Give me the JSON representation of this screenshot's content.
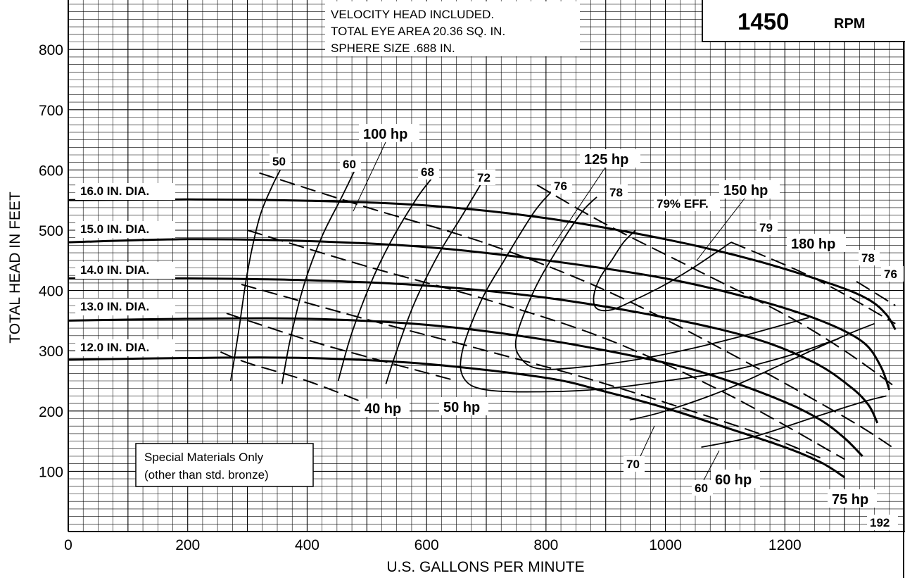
{
  "chart_data": {
    "type": "line",
    "title": "",
    "xlabel": "U.S. GALLONS PER MINUTE",
    "ylabel": "TOTAL HEAD IN FEET",
    "xlim": [
      0,
      1400
    ],
    "ylim": [
      0,
      900
    ],
    "xticks": [
      0,
      200,
      400,
      600,
      800,
      1000,
      1200
    ],
    "yticks": [
      100,
      200,
      300,
      400,
      500,
      600,
      700,
      800
    ],
    "grid": true,
    "speed": {
      "value": "1450",
      "unit": "RPM"
    },
    "notes": [
      "VELOCITY HEAD INCLUDED.",
      "TOTAL EYE AREA 20.36 SQ. IN.",
      "SPHERE SIZE .688 IN."
    ],
    "materials_note": [
      "Special Materials Only",
      "(other than std. bronze)"
    ],
    "head_curves": [
      {
        "label": "16.0 IN. DIA.",
        "points": [
          [
            0,
            550
          ],
          [
            200,
            551
          ],
          [
            400,
            549
          ],
          [
            600,
            541
          ],
          [
            800,
            520
          ],
          [
            1000,
            485
          ],
          [
            1150,
            450
          ],
          [
            1280,
            410
          ],
          [
            1340,
            385
          ],
          [
            1370,
            360
          ],
          [
            1385,
            335
          ]
        ]
      },
      {
        "label": "15.0 IN. DIA.",
        "points": [
          [
            0,
            480
          ],
          [
            200,
            485
          ],
          [
            400,
            482
          ],
          [
            600,
            472
          ],
          [
            800,
            450
          ],
          [
            1000,
            420
          ],
          [
            1150,
            385
          ],
          [
            1260,
            350
          ],
          [
            1330,
            315
          ],
          [
            1360,
            275
          ],
          [
            1375,
            235
          ]
        ]
      },
      {
        "label": "14.0 IN. DIA.",
        "points": [
          [
            0,
            420
          ],
          [
            200,
            420
          ],
          [
            400,
            417
          ],
          [
            600,
            408
          ],
          [
            800,
            388
          ],
          [
            1000,
            355
          ],
          [
            1150,
            320
          ],
          [
            1250,
            280
          ],
          [
            1310,
            240
          ],
          [
            1340,
            210
          ],
          [
            1355,
            180
          ]
        ]
      },
      {
        "label": "13.0 IN. DIA.",
        "points": [
          [
            0,
            350
          ],
          [
            200,
            353
          ],
          [
            400,
            353
          ],
          [
            600,
            343
          ],
          [
            800,
            318
          ],
          [
            1000,
            280
          ],
          [
            1100,
            252
          ],
          [
            1200,
            215
          ],
          [
            1260,
            185
          ],
          [
            1300,
            155
          ],
          [
            1330,
            125
          ]
        ]
      },
      {
        "label": "12.0 IN. DIA.",
        "points": [
          [
            0,
            285
          ],
          [
            200,
            288
          ],
          [
            400,
            288
          ],
          [
            600,
            278
          ],
          [
            800,
            255
          ],
          [
            900,
            232
          ],
          [
            1000,
            205
          ],
          [
            1100,
            173
          ],
          [
            1200,
            140
          ],
          [
            1260,
            115
          ],
          [
            1300,
            90
          ]
        ]
      }
    ],
    "efficiency_curves": [
      {
        "label": "50",
        "points": [
          [
            272,
            250
          ],
          [
            285,
            330
          ],
          [
            300,
            430
          ],
          [
            320,
            520
          ],
          [
            340,
            570
          ],
          [
            355,
            600
          ]
        ]
      },
      {
        "label": "60",
        "points": [
          [
            358,
            245
          ],
          [
            372,
            320
          ],
          [
            395,
            410
          ],
          [
            425,
            490
          ],
          [
            458,
            555
          ],
          [
            480,
            600
          ]
        ]
      },
      {
        "label": "68",
        "points": [
          [
            452,
            250
          ],
          [
            475,
            330
          ],
          [
            510,
            420
          ],
          [
            545,
            490
          ],
          [
            585,
            555
          ],
          [
            608,
            585
          ]
        ]
      },
      {
        "label": "72",
        "points": [
          [
            532,
            245
          ],
          [
            550,
            300
          ],
          [
            580,
            380
          ],
          [
            620,
            460
          ],
          [
            660,
            525
          ],
          [
            690,
            575
          ]
        ]
      },
      {
        "label": "76",
        "points": [
          [
            1290,
            320
          ],
          [
            1200,
            290
          ],
          [
            1100,
            265
          ],
          [
            1000,
            250
          ],
          [
            900,
            237
          ],
          [
            800,
            232
          ],
          [
            700,
            235
          ],
          [
            662,
            255
          ],
          [
            660,
            300
          ],
          [
            690,
            380
          ],
          [
            730,
            450
          ],
          [
            780,
            530
          ],
          [
            810,
            565
          ]
        ]
      },
      {
        "label": "78",
        "points": [
          [
            1240,
            355
          ],
          [
            1150,
            330
          ],
          [
            1050,
            305
          ],
          [
            950,
            285
          ],
          [
            850,
            272
          ],
          [
            790,
            270
          ],
          [
            760,
            285
          ],
          [
            750,
            320
          ],
          [
            780,
            400
          ],
          [
            820,
            470
          ],
          [
            860,
            530
          ],
          [
            885,
            555
          ]
        ]
      },
      {
        "label": "79% EFF.",
        "points": [
          [
            1110,
            480
          ],
          [
            1050,
            440
          ],
          [
            1000,
            410
          ],
          [
            950,
            385
          ],
          [
            910,
            368
          ],
          [
            885,
            370
          ],
          [
            880,
            390
          ],
          [
            890,
            420
          ],
          [
            910,
            450
          ],
          [
            930,
            480
          ],
          [
            950,
            500
          ]
        ]
      },
      {
        "label": "70",
        "points": [
          [
            940,
            185
          ],
          [
            1000,
            200
          ],
          [
            1100,
            235
          ],
          [
            1200,
            280
          ],
          [
            1300,
            325
          ],
          [
            1350,
            345
          ]
        ]
      },
      {
        "label": "60",
        "points": [
          [
            1060,
            140
          ],
          [
            1150,
            158
          ],
          [
            1250,
            190
          ],
          [
            1330,
            215
          ],
          [
            1370,
            225
          ]
        ]
      }
    ],
    "hp_curves": [
      {
        "label": "40 hp",
        "points": [
          [
            255,
            298
          ],
          [
            300,
            280
          ],
          [
            400,
            250
          ],
          [
            500,
            212
          ]
        ]
      },
      {
        "label": "50 hp",
        "points": [
          [
            265,
            362
          ],
          [
            400,
            318
          ],
          [
            500,
            290
          ],
          [
            650,
            250
          ]
        ]
      },
      {
        "label": "60 hp",
        "points": [
          [
            290,
            410
          ],
          [
            500,
            352
          ],
          [
            700,
            300
          ],
          [
            900,
            245
          ],
          [
            1150,
            165
          ],
          [
            1265,
            120
          ]
        ]
      },
      {
        "label": "75 hp",
        "points": [
          [
            300,
            500
          ],
          [
            500,
            440
          ],
          [
            700,
            385
          ],
          [
            900,
            320
          ],
          [
            1100,
            230
          ],
          [
            1300,
            120
          ]
        ]
      },
      {
        "label": "100 hp",
        "points": [
          [
            320,
            595
          ],
          [
            500,
            538
          ],
          [
            700,
            478
          ],
          [
            900,
            400
          ],
          [
            1100,
            300
          ],
          [
            1300,
            190
          ],
          [
            1380,
            140
          ]
        ]
      },
      {
        "label": "125 hp",
        "points": [
          [
            785,
            575
          ],
          [
            900,
            510
          ],
          [
            1050,
            435
          ],
          [
            1200,
            360
          ],
          [
            1300,
            300
          ],
          [
            1385,
            240
          ]
        ]
      },
      {
        "label": "150 hp",
        "points": [
          [
            1110,
            480
          ],
          [
            1250,
            420
          ],
          [
            1385,
            345
          ]
        ]
      },
      {
        "label": "180 hp",
        "points": [
          [
            1320,
            415
          ],
          [
            1385,
            375
          ]
        ]
      }
    ],
    "annotations": [
      "100 hp",
      "125 hp",
      "150 hp",
      "180 hp",
      "40 hp",
      "50 hp",
      "60 hp",
      "75 hp",
      "50",
      "60",
      "68",
      "72",
      "76",
      "78",
      "79% EFF.",
      "79",
      "78",
      "76",
      "70",
      "60",
      "192"
    ]
  }
}
